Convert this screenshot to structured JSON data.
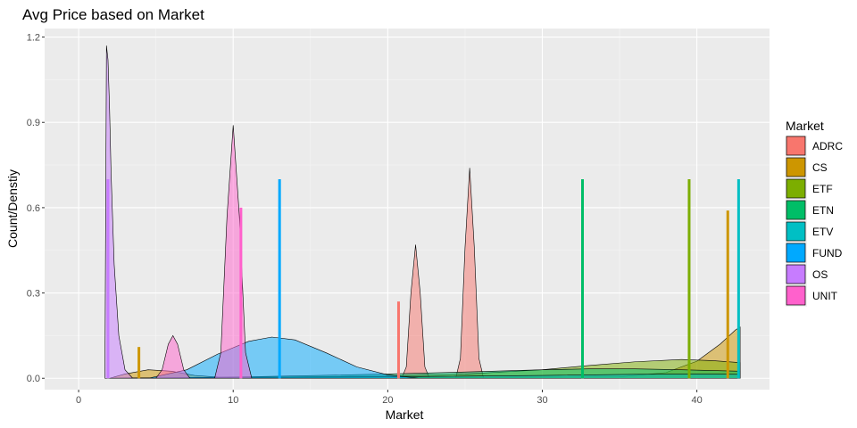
{
  "chart_data": {
    "type": "area",
    "title": "Avg Price based on Market",
    "xlabel": "Market",
    "ylabel": "Count/Denstiy",
    "xlim": [
      -2.2,
      44.7
    ],
    "ylim": [
      -0.04,
      1.23
    ],
    "x_ticks": [
      0,
      10,
      20,
      30,
      40
    ],
    "x_tick_labels": [
      "0",
      "10",
      "20",
      "30",
      "40"
    ],
    "y_ticks": [
      0.0,
      0.3,
      0.6,
      0.9,
      1.2
    ],
    "y_tick_labels": [
      "0.0",
      "0.3",
      "0.6",
      "0.9",
      "1.2"
    ],
    "grid": true,
    "legend_title": "Market",
    "legend_position": "right",
    "series": [
      {
        "name": "ADRC",
        "color": "#F8766D",
        "densities": [
          {
            "x": [
              20.9,
              21.2,
              21.5,
              21.8,
              22.1,
              22.4,
              22.7
            ],
            "y": [
              0.0,
              0.04,
              0.3,
              0.47,
              0.3,
              0.04,
              0.0
            ]
          },
          {
            "x": [
              24.4,
              24.7,
              25.0,
              25.3,
              25.6,
              25.9,
              26.2
            ],
            "y": [
              0.0,
              0.07,
              0.46,
              0.74,
              0.46,
              0.07,
              0.0
            ]
          }
        ],
        "bars": [
          {
            "x": 20.7,
            "y": 0.27
          }
        ]
      },
      {
        "name": "CS",
        "color": "#CD9600",
        "densities": [
          {
            "x": [
              2.0,
              3.0,
              4.5,
              6.0,
              7.5,
              9.0,
              20,
              35,
              38,
              40,
              41.5,
              42.5,
              42.8
            ],
            "y": [
              0.0,
              0.015,
              0.03,
              0.025,
              0.01,
              0.004,
              0.002,
              0.005,
              0.02,
              0.06,
              0.12,
              0.17,
              0.18
            ]
          }
        ],
        "bars": [
          {
            "x": 3.9,
            "y": 0.11
          },
          {
            "x": 42.0,
            "y": 0.59
          }
        ]
      },
      {
        "name": "ETF",
        "color": "#7CAE00",
        "densities": [
          {
            "x": [
              2,
              10,
              20,
              25,
              30,
              33,
              36,
              39,
              41,
              42.8
            ],
            "y": [
              0.0,
              0.003,
              0.008,
              0.015,
              0.03,
              0.045,
              0.058,
              0.066,
              0.062,
              0.055
            ]
          }
        ],
        "bars": [
          {
            "x": 39.5,
            "y": 0.7
          }
        ]
      },
      {
        "name": "ETN",
        "color": "#00BE67",
        "densities": [
          {
            "x": [
              2,
              10,
              20,
              25,
              30,
              33,
              36,
              39,
              42.8
            ],
            "y": [
              0.0,
              0.004,
              0.015,
              0.022,
              0.03,
              0.033,
              0.033,
              0.03,
              0.025
            ]
          }
        ],
        "bars": [
          {
            "x": 32.6,
            "y": 0.7
          }
        ]
      },
      {
        "name": "ETV",
        "color": "#00BFC4",
        "densities": [
          {
            "x": [
              2,
              10,
              20,
              30,
              36,
              40,
              42.8
            ],
            "y": [
              0.0,
              0.002,
              0.005,
              0.01,
              0.014,
              0.015,
              0.014
            ]
          }
        ],
        "bars": [
          {
            "x": 42.7,
            "y": 0.7
          }
        ]
      },
      {
        "name": "FUND",
        "color": "#00A9FF",
        "densities": [
          {
            "x": [
              4.5,
              7,
              9,
              11,
              12.5,
              14,
              16,
              18,
              20,
              22
            ],
            "y": [
              0.0,
              0.03,
              0.085,
              0.13,
              0.145,
              0.135,
              0.09,
              0.04,
              0.012,
              0.0
            ]
          }
        ],
        "bars": [
          {
            "x": 13.0,
            "y": 0.7
          }
        ]
      },
      {
        "name": "OS",
        "color": "#C77CFF",
        "densities": [
          {
            "x": [
              1.7,
              1.8,
              1.9,
              2.0,
              2.1,
              2.3,
              2.6,
              3.0,
              3.5
            ],
            "y": [
              0.0,
              1.17,
              1.12,
              0.95,
              0.72,
              0.4,
              0.15,
              0.03,
              0.0
            ]
          }
        ],
        "bars": [
          {
            "x": 1.9,
            "y": 0.7
          }
        ]
      },
      {
        "name": "UNIT",
        "color": "#FF61CC",
        "densities": [
          {
            "x": [
              5.0,
              5.4,
              5.8,
              6.1,
              6.4,
              6.8,
              7.2
            ],
            "y": [
              0.0,
              0.03,
              0.12,
              0.15,
              0.12,
              0.03,
              0.0
            ]
          },
          {
            "x": [
              8.8,
              9.2,
              9.6,
              10.0,
              10.4,
              10.8,
              11.2
            ],
            "y": [
              0.0,
              0.09,
              0.57,
              0.89,
              0.57,
              0.09,
              0.0
            ]
          }
        ],
        "bars": [
          {
            "x": 10.5,
            "y": 0.6
          }
        ]
      }
    ]
  }
}
